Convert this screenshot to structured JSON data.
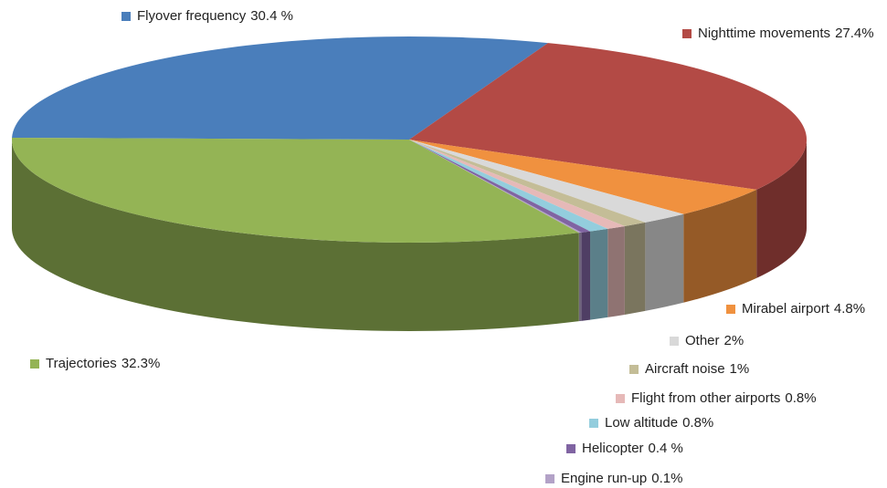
{
  "chart_data": {
    "type": "pie",
    "categories": [
      "Flyover frequency",
      "Nighttime movements",
      "Mirabel  airport",
      "Other",
      "Aircraft noise",
      "Flight from other airports",
      "Low altitude",
      "Helicopter",
      "Engine run-up",
      "Trajectories"
    ],
    "values": [
      30.4,
      27.4,
      4.8,
      2,
      1,
      0.8,
      0.8,
      0.4,
      0.1,
      32.3
    ],
    "value_labels": [
      "30.4 %",
      "27.4%",
      "4.8%",
      "2%",
      "1%",
      "0.8%",
      "0.8%",
      "0.4 %",
      "0.1%",
      "32.3%"
    ],
    "colors": [
      "#4a7ebb",
      "#b34a45",
      "#f0913f",
      "#d9d9d9",
      "#c4bd97",
      "#e6b9b8",
      "#93cddd",
      "#8064a2",
      "#b3a2c7",
      "#94b455"
    ]
  }
}
